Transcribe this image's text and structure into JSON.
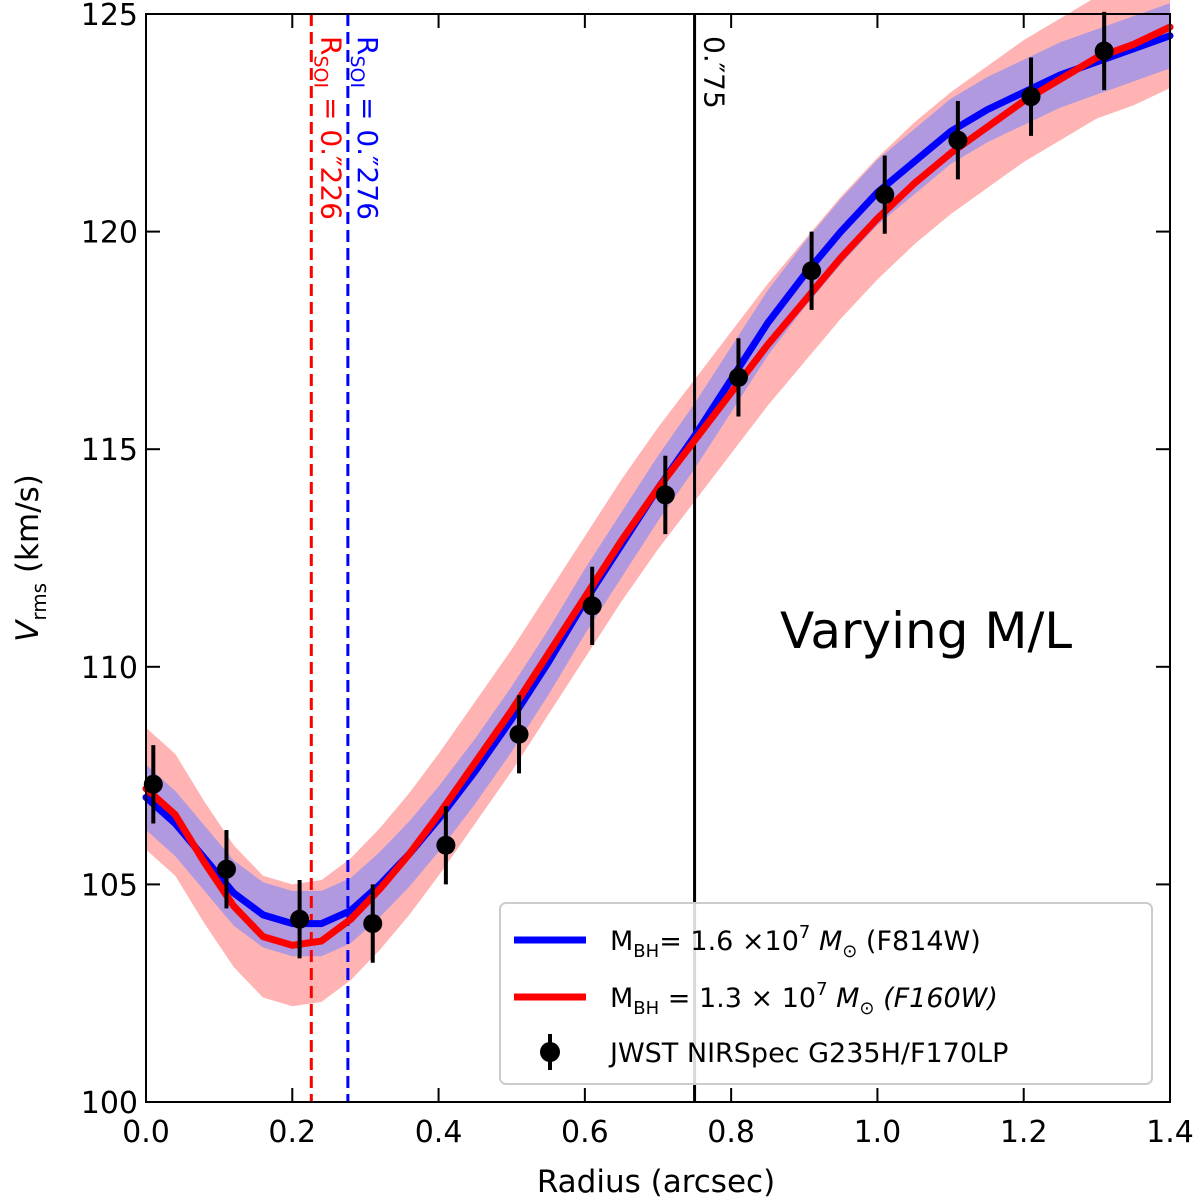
{
  "chart_data": {
    "type": "line",
    "xlabel": "Radius (arcsec)",
    "ylabel": {
      "main": "V",
      "sub": "rms",
      "unit": " (km/s)"
    },
    "xlim": [
      0.0,
      1.4
    ],
    "ylim": [
      100,
      125
    ],
    "x_ticks": [
      0.0,
      0.2,
      0.4,
      0.6,
      0.8,
      1.0,
      1.2,
      1.4
    ],
    "x_tick_labels": [
      "0.0",
      "0.2",
      "0.4",
      "0.6",
      "0.8",
      "1.0",
      "1.2",
      "1.4"
    ],
    "y_ticks": [
      100,
      105,
      110,
      115,
      120,
      125
    ],
    "y_tick_labels": [
      "100",
      "105",
      "110",
      "115",
      "120",
      "125"
    ],
    "grid": false,
    "legend_position": "bottom-right",
    "annotation": "Varying M/L",
    "series": [
      {
        "name": "F814W model",
        "legend_label": "M_BH= 1.6 ×10^7 M☉ (F814W)",
        "color": "#0000ff",
        "band_color": "#8f8ff2",
        "x": [
          0.0,
          0.04,
          0.08,
          0.12,
          0.16,
          0.2,
          0.24,
          0.28,
          0.32,
          0.36,
          0.4,
          0.45,
          0.5,
          0.55,
          0.6,
          0.65,
          0.7,
          0.75,
          0.8,
          0.85,
          0.9,
          0.95,
          1.0,
          1.05,
          1.1,
          1.15,
          1.2,
          1.25,
          1.3,
          1.35,
          1.4
        ],
        "y": [
          107.0,
          106.4,
          105.6,
          104.8,
          104.3,
          104.1,
          104.1,
          104.4,
          105.0,
          105.7,
          106.5,
          107.6,
          108.8,
          110.1,
          111.5,
          112.8,
          114.1,
          115.3,
          116.6,
          117.9,
          119.0,
          120.0,
          120.9,
          121.6,
          122.3,
          122.8,
          123.2,
          123.6,
          123.9,
          124.2,
          124.5
        ],
        "band_halfwidth": 0.75
      },
      {
        "name": "F160W model",
        "legend_label": "M_BH = 1.3 × 10^7 M☉ (F160W)",
        "color": "#ff0000",
        "band_color": "#ffb3b3",
        "x": [
          0.0,
          0.04,
          0.08,
          0.12,
          0.16,
          0.2,
          0.24,
          0.28,
          0.32,
          0.36,
          0.4,
          0.45,
          0.5,
          0.55,
          0.6,
          0.65,
          0.7,
          0.75,
          0.8,
          0.85,
          0.9,
          0.95,
          1.0,
          1.05,
          1.1,
          1.15,
          1.2,
          1.25,
          1.3,
          1.35,
          1.4
        ],
        "y": [
          107.2,
          106.6,
          105.5,
          104.5,
          103.8,
          103.6,
          103.7,
          104.2,
          104.9,
          105.7,
          106.6,
          107.8,
          109.0,
          110.3,
          111.6,
          112.9,
          114.1,
          115.2,
          116.3,
          117.4,
          118.4,
          119.4,
          120.3,
          121.1,
          121.8,
          122.4,
          123.0,
          123.5,
          124.0,
          124.3,
          124.7
        ],
        "band_halfwidth": 1.4
      }
    ],
    "data_points": {
      "name": "JWST NIRSpec G235H/F170LP",
      "color": "#000000",
      "x": [
        0.01,
        0.11,
        0.21,
        0.31,
        0.41,
        0.51,
        0.61,
        0.71,
        0.81,
        0.91,
        1.01,
        1.11,
        1.21,
        1.31
      ],
      "y": [
        107.3,
        105.35,
        104.2,
        104.1,
        105.9,
        108.45,
        111.4,
        113.95,
        116.65,
        119.1,
        120.85,
        122.1,
        123.1,
        124.15
      ],
      "yerr": [
        0.9,
        0.9,
        0.9,
        0.9,
        0.9,
        0.9,
        0.9,
        0.9,
        0.9,
        0.9,
        0.9,
        0.9,
        0.9,
        0.9
      ]
    },
    "vertical_lines": [
      {
        "x": 0.226,
        "color": "#ff0000",
        "style": "dashed",
        "label": {
          "main": "R",
          "sub": "SOI",
          "rest": " = 0.″226"
        }
      },
      {
        "x": 0.276,
        "color": "#0000ff",
        "style": "dashed",
        "label": {
          "main": "R",
          "sub": "SOI",
          "rest": " = 0.″276"
        }
      },
      {
        "x": 0.75,
        "color": "#000000",
        "style": "solid",
        "label": {
          "main": "0.″75",
          "sub": "",
          "rest": ""
        }
      }
    ],
    "legend": [
      {
        "kind": "line",
        "color": "#0000ff",
        "text": {
          "a": "M",
          "asub": "BH",
          "b": "= 1.6 ×10",
          "exp": "7",
          "m": " M",
          "msub": "⊙",
          "c": " (F814W)"
        }
      },
      {
        "kind": "line",
        "color": "#ff0000",
        "text": {
          "a": "M",
          "asub": "BH",
          "b": " = 1.3 × 10",
          "exp": "7",
          "m": " M",
          "msub": "⊙",
          "c": " (F160W)"
        }
      },
      {
        "kind": "point",
        "color": "#000000",
        "text": {
          "a": "JWST NIRSpec G235H/F170LP"
        }
      }
    ]
  }
}
